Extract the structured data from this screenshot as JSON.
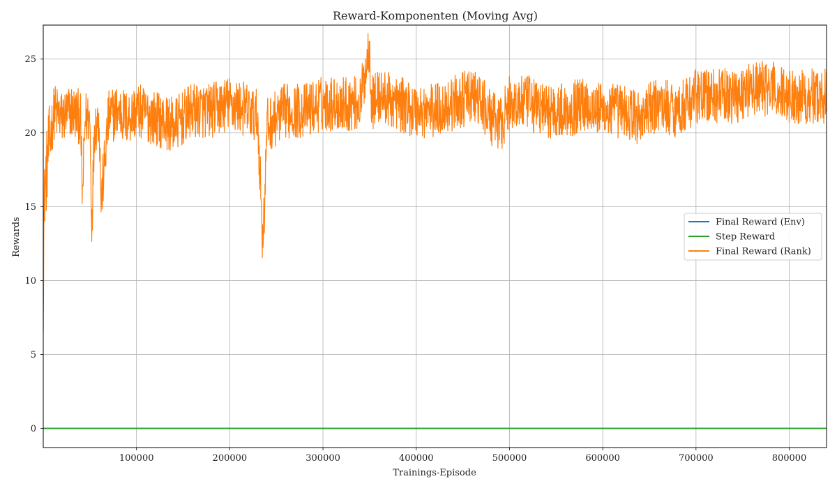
{
  "chart_data": {
    "type": "line",
    "title": "Reward-Komponenten (Moving Avg)",
    "xlabel": "Trainings-Episode",
    "ylabel": "Rewards",
    "xlim": [
      0,
      840000
    ],
    "ylim": [
      -1.3,
      27.3
    ],
    "x_ticks": [
      100000,
      200000,
      300000,
      400000,
      500000,
      600000,
      700000,
      800000
    ],
    "y_ticks": [
      0,
      5,
      10,
      15,
      20,
      25
    ],
    "grid": true,
    "legend_position": "center-right",
    "series": [
      {
        "name": "Final Reward (Env)",
        "color": "#1f77b4",
        "x": [
          0,
          840000
        ],
        "values": [
          0,
          0
        ]
      },
      {
        "name": "Step Reward",
        "color": "#2ca02c",
        "x": [
          0,
          840000
        ],
        "values": [
          0,
          0
        ]
      },
      {
        "name": "Final Reward (Rank)",
        "color": "#ff7f0e",
        "x": [
          0,
          500,
          1500,
          3000,
          5000,
          8000,
          12000,
          20000,
          30000,
          40000,
          42000,
          45000,
          50000,
          52000,
          55000,
          60000,
          62000,
          70000,
          80000,
          90000,
          100000,
          120000,
          140000,
          160000,
          180000,
          200000,
          220000,
          230000,
          233000,
          235000,
          237000,
          240000,
          250000,
          260000,
          280000,
          300000,
          320000,
          340000,
          350000,
          352000,
          360000,
          380000,
          400000,
          420000,
          440000,
          460000,
          470000,
          480000,
          490000,
          500000,
          520000,
          540000,
          560000,
          580000,
          600000,
          620000,
          640000,
          660000,
          680000,
          700000,
          720000,
          740000,
          760000,
          780000,
          800000,
          820000,
          840000
        ],
        "values": [
          9,
          13,
          16,
          17,
          18.5,
          20,
          21.5,
          21,
          21.5,
          21,
          15.5,
          21,
          21,
          13.8,
          20.5,
          21,
          15.3,
          21,
          21.5,
          21,
          21.5,
          21,
          20.5,
          21.5,
          21.5,
          22,
          21.5,
          21,
          16.5,
          13,
          14.5,
          20.5,
          21,
          21.5,
          21.5,
          22,
          22,
          22,
          26,
          22,
          22.5,
          22,
          21.5,
          21.5,
          22,
          22.5,
          22,
          21,
          20.5,
          22,
          22,
          21.5,
          21.5,
          22,
          21.5,
          21.5,
          21,
          22,
          21.5,
          22.5,
          22.5,
          22.5,
          23,
          23,
          22.5,
          22.5,
          22.5
        ],
        "noise_amplitude": 1.9
      }
    ]
  }
}
